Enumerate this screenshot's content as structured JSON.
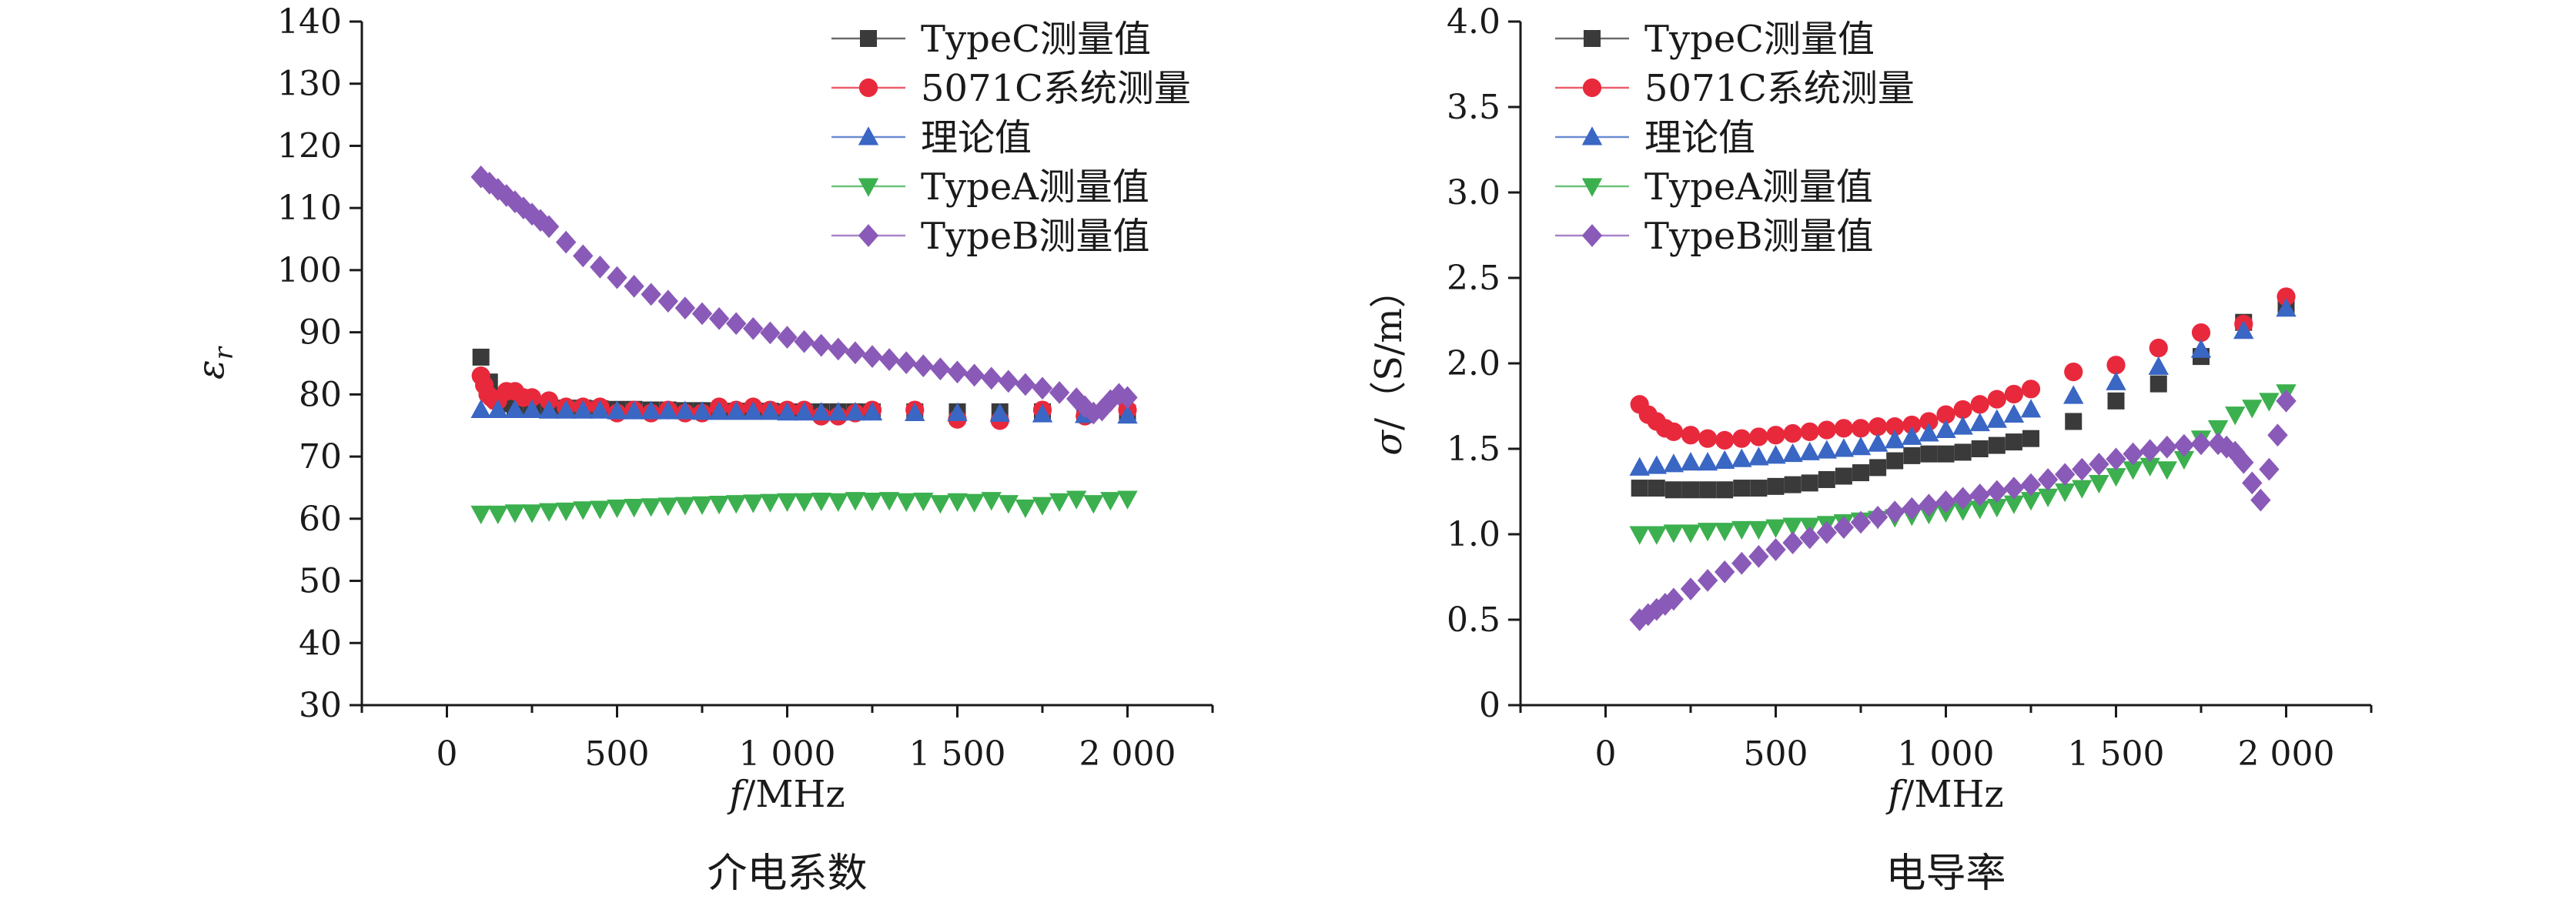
{
  "chart_data": [
    {
      "type": "scatter",
      "title": "",
      "caption": "介电系数",
      "xlabel": "f/MHz",
      "xlabel_parts": [
        "f",
        "/MHz"
      ],
      "ylabel": "εr",
      "ylabel_parts": [
        "ε",
        "r"
      ],
      "xlim": [
        -250,
        2250
      ],
      "ylim": [
        30,
        140
      ],
      "xticks": [
        0,
        500,
        1000,
        1500,
        2000
      ],
      "xtick_labels": [
        "0",
        "500",
        "1 000",
        "1 500",
        "2 000"
      ],
      "yticks": [
        30,
        40,
        50,
        60,
        70,
        80,
        90,
        100,
        110,
        120,
        130,
        140
      ],
      "ytick_labels": [
        "30",
        "40",
        "50",
        "60",
        "70",
        "80",
        "90",
        "100",
        "110",
        "120",
        "130",
        "140"
      ],
      "legend_position": "top-right",
      "grid": false,
      "series": [
        {
          "name": "TypeC测量值",
          "marker": "square",
          "color": "#3a3a3a",
          "x": [
            100,
            125,
            150,
            175,
            200,
            250,
            300,
            350,
            400,
            450,
            500,
            550,
            600,
            650,
            700,
            750,
            800,
            850,
            900,
            950,
            1000,
            1050,
            1100,
            1150,
            1200,
            1250,
            1375,
            1500,
            1625,
            1750,
            1875,
            2000
          ],
          "y": [
            86,
            82,
            79,
            78.5,
            78,
            78,
            78,
            77.8,
            77.8,
            77.7,
            77.6,
            77.6,
            77.5,
            77.5,
            77.4,
            77.4,
            77.3,
            77.3,
            77.3,
            77.3,
            77.2,
            77.2,
            77.2,
            77.2,
            77.2,
            77.2,
            77.2,
            77.2,
            77.2,
            77.2,
            77.1,
            77
          ]
        },
        {
          "name": "5071C系统测量",
          "marker": "circle",
          "color": "#e8293c",
          "x": [
            100,
            110,
            120,
            130,
            140,
            150,
            175,
            200,
            225,
            250,
            300,
            350,
            400,
            450,
            500,
            550,
            600,
            650,
            700,
            750,
            800,
            850,
            900,
            950,
            1000,
            1050,
            1100,
            1150,
            1200,
            1250,
            1375,
            1500,
            1625,
            1750,
            1875,
            2000
          ],
          "y": [
            83,
            81.5,
            80,
            79.5,
            79,
            79,
            80.5,
            80.5,
            79.5,
            79.5,
            79,
            78,
            78,
            78,
            77,
            77.5,
            77,
            77.5,
            77,
            77,
            78,
            77.5,
            78,
            77.5,
            77.5,
            77.5,
            76.5,
            76.5,
            77,
            77.5,
            77.5,
            76,
            75.8,
            77.5,
            76.5,
            77.5
          ]
        },
        {
          "name": "理论值",
          "marker": "triangle-up",
          "color": "#3a66c4",
          "x": [
            100,
            150,
            200,
            250,
            300,
            350,
            400,
            450,
            500,
            550,
            600,
            650,
            700,
            750,
            800,
            850,
            900,
            950,
            1000,
            1050,
            1100,
            1150,
            1200,
            1250,
            1375,
            1500,
            1625,
            1750,
            1875,
            2000
          ],
          "y": [
            77.5,
            77.5,
            77.5,
            77.5,
            77.4,
            77.4,
            77.4,
            77.4,
            77.3,
            77.3,
            77.3,
            77.3,
            77.3,
            77.2,
            77.2,
            77.2,
            77.2,
            77.2,
            77.1,
            77.1,
            77.1,
            77.1,
            77.1,
            77.1,
            77,
            77,
            76.9,
            76.8,
            76.7,
            76.6
          ]
        },
        {
          "name": "TypeA测量值",
          "marker": "triangle-down",
          "color": "#3cb04f",
          "x": [
            100,
            150,
            200,
            250,
            300,
            350,
            400,
            450,
            500,
            550,
            600,
            650,
            700,
            750,
            800,
            850,
            900,
            950,
            1000,
            1050,
            1100,
            1150,
            1200,
            1250,
            1300,
            1350,
            1400,
            1450,
            1500,
            1550,
            1600,
            1650,
            1700,
            1750,
            1800,
            1850,
            1900,
            1950,
            2000
          ],
          "y": [
            60.8,
            60.8,
            61,
            61,
            61.2,
            61.3,
            61.5,
            61.6,
            61.8,
            61.9,
            62,
            62.1,
            62.2,
            62.3,
            62.4,
            62.5,
            62.6,
            62.7,
            62.8,
            62.8,
            62.9,
            62.8,
            63,
            62.9,
            63,
            62.8,
            62.9,
            62.5,
            62.8,
            62.7,
            63,
            62.5,
            61.8,
            62.2,
            62.8,
            63.2,
            62.5,
            63,
            63.2
          ]
        },
        {
          "name": "TypeB测量值",
          "marker": "diamond",
          "color": "#8a5ab8",
          "x": [
            100,
            125,
            150,
            175,
            200,
            225,
            250,
            275,
            300,
            350,
            400,
            450,
            500,
            550,
            600,
            650,
            700,
            750,
            800,
            850,
            900,
            950,
            1000,
            1050,
            1100,
            1150,
            1200,
            1250,
            1300,
            1350,
            1400,
            1450,
            1500,
            1550,
            1600,
            1650,
            1700,
            1750,
            1800,
            1850,
            1875,
            1900,
            1925,
            1950,
            1975,
            2000
          ],
          "y": [
            115,
            114,
            113,
            112,
            111,
            110,
            109,
            108,
            107,
            104.5,
            102.3,
            100.5,
            98.8,
            97.4,
            96.1,
            95,
            93.9,
            93,
            92.2,
            91.4,
            90.6,
            89.9,
            89.2,
            88.5,
            87.9,
            87.3,
            86.7,
            86.1,
            85.6,
            85.1,
            84.6,
            84.1,
            83.6,
            83.1,
            82.6,
            82.1,
            81.6,
            81,
            80.3,
            79.3,
            78,
            77,
            77.5,
            79,
            80,
            79.5
          ]
        }
      ]
    },
    {
      "type": "scatter",
      "title": "",
      "caption": "电导率",
      "xlabel": "f/MHz",
      "xlabel_parts": [
        "f",
        "/MHz"
      ],
      "ylabel": "σ/（S/m）",
      "ylabel_parts": [
        "σ",
        "/（S/m）"
      ],
      "xlim": [
        -250,
        2250
      ],
      "ylim": [
        0,
        4.0
      ],
      "xticks": [
        0,
        500,
        1000,
        1500,
        2000
      ],
      "xtick_labels": [
        "0",
        "500",
        "1 000",
        "1 500",
        "2 000"
      ],
      "yticks": [
        0,
        0.5,
        1.0,
        1.5,
        2.0,
        2.5,
        3.0,
        3.5,
        4.0
      ],
      "ytick_labels": [
        "0",
        "0.5",
        "1.0",
        "1.5",
        "2.0",
        "2.5",
        "3.0",
        "3.5",
        "4.0"
      ],
      "legend_position": "top-left",
      "grid": false,
      "series": [
        {
          "name": "TypeC测量值",
          "marker": "square",
          "color": "#3a3a3a",
          "x": [
            100,
            150,
            200,
            250,
            300,
            350,
            400,
            450,
            500,
            550,
            600,
            650,
            700,
            750,
            800,
            850,
            900,
            950,
            1000,
            1050,
            1100,
            1150,
            1200,
            1250,
            1375,
            1500,
            1625,
            1750,
            1875,
            2000
          ],
          "y": [
            1.27,
            1.27,
            1.26,
            1.26,
            1.26,
            1.26,
            1.27,
            1.27,
            1.28,
            1.29,
            1.3,
            1.32,
            1.34,
            1.36,
            1.39,
            1.43,
            1.46,
            1.47,
            1.47,
            1.48,
            1.5,
            1.52,
            1.54,
            1.56,
            1.66,
            1.78,
            1.88,
            2.04,
            2.24,
            2.33
          ]
        },
        {
          "name": "5071C系统测量",
          "marker": "circle",
          "color": "#e8293c",
          "x": [
            100,
            125,
            150,
            175,
            200,
            250,
            300,
            350,
            400,
            450,
            500,
            550,
            600,
            650,
            700,
            750,
            800,
            850,
            900,
            950,
            1000,
            1050,
            1100,
            1150,
            1200,
            1250,
            1375,
            1500,
            1625,
            1750,
            1875,
            2000
          ],
          "y": [
            1.76,
            1.7,
            1.66,
            1.62,
            1.6,
            1.58,
            1.56,
            1.55,
            1.56,
            1.57,
            1.58,
            1.59,
            1.6,
            1.61,
            1.62,
            1.62,
            1.63,
            1.63,
            1.64,
            1.66,
            1.7,
            1.73,
            1.76,
            1.79,
            1.82,
            1.85,
            1.95,
            1.99,
            2.09,
            2.18,
            2.23,
            2.39
          ]
        },
        {
          "name": "理论值",
          "marker": "triangle-up",
          "color": "#3a66c4",
          "x": [
            100,
            150,
            200,
            250,
            300,
            350,
            400,
            450,
            500,
            550,
            600,
            650,
            700,
            750,
            800,
            850,
            900,
            950,
            1000,
            1050,
            1100,
            1150,
            1200,
            1250,
            1375,
            1500,
            1625,
            1750,
            1875,
            2000
          ],
          "y": [
            1.39,
            1.4,
            1.41,
            1.42,
            1.42,
            1.43,
            1.44,
            1.45,
            1.46,
            1.47,
            1.48,
            1.49,
            1.5,
            1.51,
            1.53,
            1.55,
            1.57,
            1.59,
            1.61,
            1.63,
            1.65,
            1.67,
            1.7,
            1.73,
            1.81,
            1.89,
            1.98,
            2.08,
            2.19,
            2.32
          ]
        },
        {
          "name": "TypeA测量值",
          "marker": "triangle-down",
          "color": "#3cb04f",
          "x": [
            100,
            150,
            200,
            250,
            300,
            350,
            400,
            450,
            500,
            550,
            600,
            650,
            700,
            750,
            800,
            850,
            900,
            950,
            1000,
            1050,
            1100,
            1150,
            1200,
            1250,
            1300,
            1350,
            1400,
            1450,
            1500,
            1550,
            1600,
            1650,
            1700,
            1750,
            1800,
            1850,
            1900,
            1950,
            2000
          ],
          "y": [
            1.0,
            1.0,
            1.01,
            1.01,
            1.02,
            1.02,
            1.03,
            1.03,
            1.04,
            1.05,
            1.05,
            1.06,
            1.07,
            1.08,
            1.09,
            1.1,
            1.11,
            1.12,
            1.13,
            1.14,
            1.15,
            1.16,
            1.18,
            1.2,
            1.22,
            1.25,
            1.27,
            1.3,
            1.34,
            1.38,
            1.4,
            1.38,
            1.44,
            1.56,
            1.62,
            1.7,
            1.74,
            1.78,
            1.83
          ]
        },
        {
          "name": "TypeB测量值",
          "marker": "diamond",
          "color": "#8a5ab8",
          "x": [
            100,
            125,
            150,
            175,
            200,
            250,
            300,
            350,
            400,
            450,
            500,
            550,
            600,
            650,
            700,
            750,
            800,
            850,
            900,
            950,
            1000,
            1050,
            1100,
            1150,
            1200,
            1250,
            1300,
            1350,
            1400,
            1450,
            1500,
            1550,
            1600,
            1650,
            1700,
            1750,
            1800,
            1825,
            1850,
            1875,
            1900,
            1925,
            1950,
            1975,
            2000
          ],
          "y": [
            0.5,
            0.53,
            0.56,
            0.59,
            0.62,
            0.68,
            0.73,
            0.78,
            0.83,
            0.87,
            0.91,
            0.95,
            0.98,
            1.01,
            1.04,
            1.07,
            1.1,
            1.13,
            1.15,
            1.17,
            1.19,
            1.21,
            1.23,
            1.25,
            1.27,
            1.29,
            1.32,
            1.35,
            1.38,
            1.41,
            1.44,
            1.47,
            1.49,
            1.51,
            1.52,
            1.53,
            1.53,
            1.51,
            1.48,
            1.42,
            1.3,
            1.2,
            1.38,
            1.58,
            1.78
          ]
        }
      ]
    }
  ]
}
